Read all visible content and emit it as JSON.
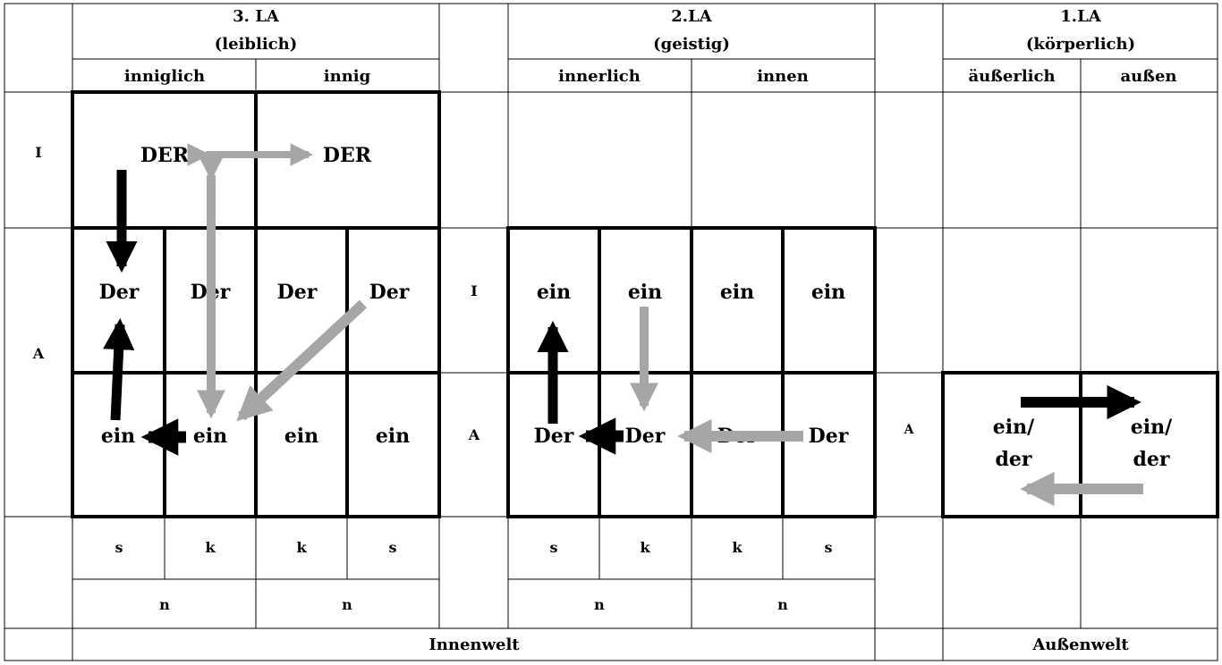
{
  "headers": {
    "la3_title": "3. LA",
    "la3_sub": "(leiblich)",
    "la2_title": "2.LA",
    "la2_sub": "(geistig)",
    "la1_title": "1.LA",
    "la1_sub": "(körperlich)"
  },
  "subheaders": [
    "inniglich",
    "innig",
    "innerlich",
    "innen",
    "äußerlich",
    "außen"
  ],
  "row_labels": {
    "row_I": "I",
    "row_A": "A",
    "la2_I": "I",
    "la2_A": "A",
    "la1_A": "A"
  },
  "la3": {
    "top": [
      "DER",
      "DER"
    ],
    "mid": [
      "Der",
      "Der",
      "Der",
      "Der"
    ],
    "bottom": [
      "ein",
      "ein",
      "ein",
      "ein"
    ]
  },
  "la2": {
    "mid": [
      "ein",
      "ein",
      "ein",
      "ein"
    ],
    "bottom": [
      "Der",
      "Der",
      "Der",
      "Der"
    ]
  },
  "la1": {
    "cells": [
      {
        "line1": "ein/",
        "line2": "der"
      },
      {
        "line1": "ein/",
        "line2": "der"
      }
    ]
  },
  "footer_codes": {
    "la3": [
      "s",
      "k",
      "k",
      "s"
    ],
    "la2": [
      "s",
      "k",
      "k",
      "s"
    ]
  },
  "footer_n": [
    "n",
    "n",
    "n",
    "n"
  ],
  "footer_world": {
    "inner": "Innenwelt",
    "outer": "Außenwelt"
  },
  "colors": {
    "black_arrow": "#000000",
    "gray_arrow": "#a6a6a6"
  }
}
